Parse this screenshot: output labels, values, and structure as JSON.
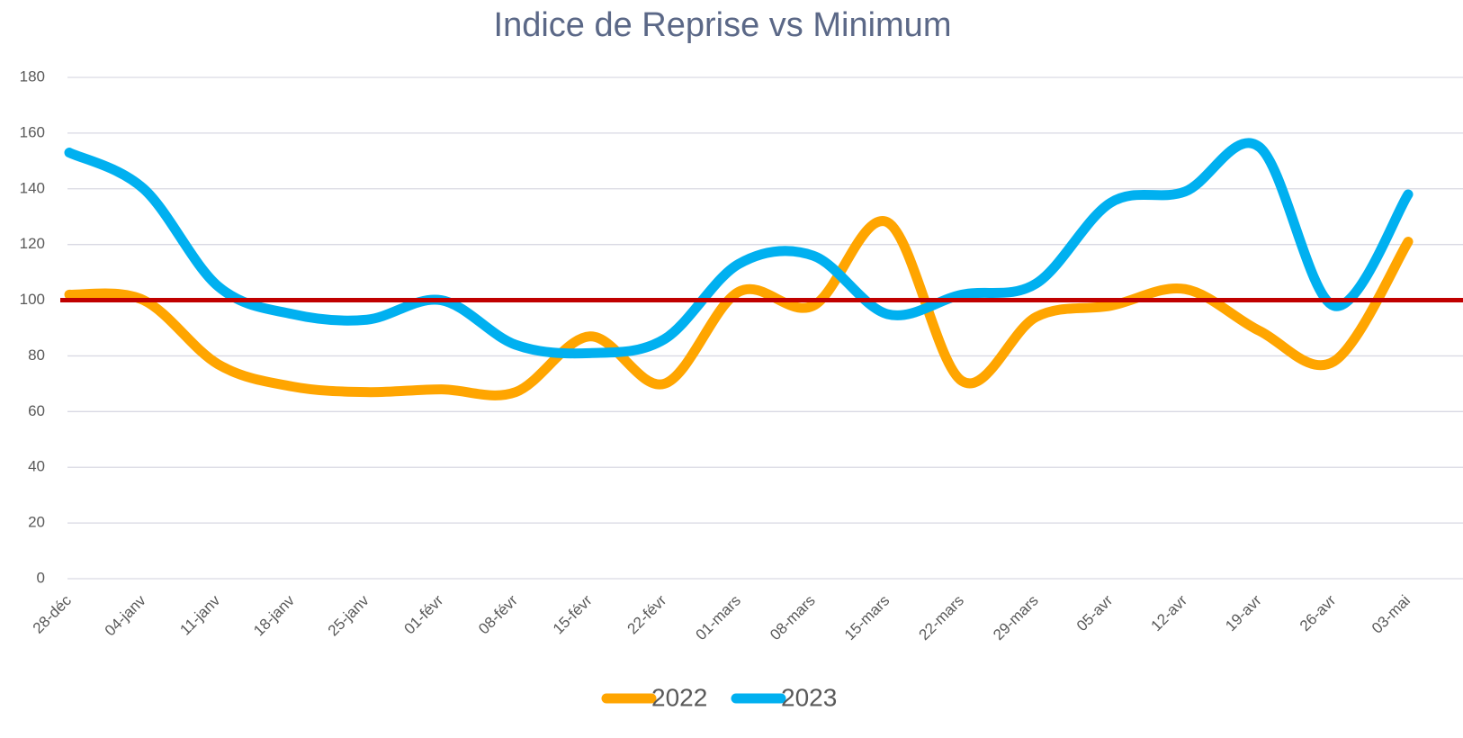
{
  "chart_data": {
    "type": "line",
    "title": "Indice de Reprise vs Minimum",
    "categories": [
      "28-déc",
      "04-janv",
      "11-janv",
      "18-janv",
      "25-janv",
      "01-févr",
      "08-févr",
      "15-févr",
      "22-févr",
      "01-mars",
      "08-mars",
      "15-mars",
      "22-mars",
      "29-mars",
      "05-avr",
      "12-avr",
      "19-avr",
      "26-avr",
      "03-mai"
    ],
    "series": [
      {
        "name": "2022",
        "color": "#ffa500",
        "values": [
          102,
          100,
          77,
          69,
          67,
          68,
          67,
          87,
          70,
          103,
          98,
          128,
          71,
          94,
          98,
          104,
          89,
          78,
          121
        ]
      },
      {
        "name": "2023",
        "color": "#00b0f0",
        "values": [
          153,
          140,
          105,
          95,
          93,
          100,
          84,
          81,
          86,
          113,
          116,
          95,
          102,
          106,
          135,
          139,
          155,
          98,
          138
        ]
      }
    ],
    "reference_line": {
      "value": 100,
      "color": "#c00000"
    },
    "ylim": [
      0,
      180
    ],
    "yticks": [
      0,
      20,
      40,
      60,
      80,
      100,
      120,
      140,
      160,
      180
    ],
    "grid": true,
    "smooth": true,
    "legend": "bottom"
  }
}
